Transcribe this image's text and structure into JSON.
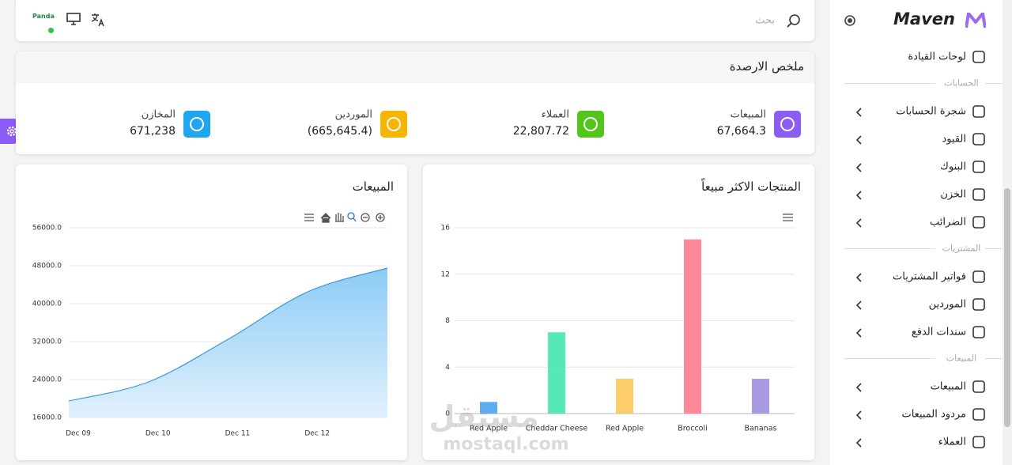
{
  "topbar": {
    "brand": "Panda",
    "search_placeholder": "بحث"
  },
  "sidebar": {
    "logo": "Maven",
    "dashboard": "لوحات القيادة",
    "sections": [
      {
        "title": "الحسابات",
        "items": [
          "شجرة الحسابات",
          "القيود",
          "البنوك",
          "الخزن",
          "الضرائب"
        ]
      },
      {
        "title": "المشتريات",
        "items": [
          "فواتير المشتريات",
          "الموردين",
          "سندات الدفع"
        ]
      },
      {
        "title": "المبيعات",
        "items": [
          "المبيعات",
          "مردود المبيعات",
          "العملاء"
        ]
      }
    ]
  },
  "summary": {
    "title": "ملخص الارصدة",
    "stats": [
      {
        "label": "المبيعات",
        "value": "67,664.3",
        "color": "#8b5cf6"
      },
      {
        "label": "العملاء",
        "value": "22,807.72",
        "color": "#52c41a"
      },
      {
        "label": "الموردين",
        "value": "(665,645.4)",
        "color": "#f7b500"
      },
      {
        "label": "المخازن",
        "value": "671,238",
        "color": "#1ea7f0"
      }
    ]
  },
  "sales_chart": {
    "type": "area",
    "title": "المبيعات",
    "categories": [
      "Dec 09",
      "Dec 10",
      "Dec 11",
      "Dec 12",
      null
    ],
    "values": [
      19500,
      23500,
      32500,
      42500,
      47500
    ],
    "color": "#3a9ad9",
    "ylim": [
      16000,
      56000
    ],
    "yticks": [
      {
        "value": 16000,
        "label": "16000.0"
      },
      {
        "value": 24000,
        "label": "24000.0"
      },
      {
        "value": 32000,
        "label": "32000.0"
      },
      {
        "value": 40000,
        "label": "40000.0"
      },
      {
        "value": 48000,
        "label": "48000.0"
      },
      {
        "value": 56000,
        "label": "56000.0"
      }
    ],
    "grid": true
  },
  "products_chart": {
    "type": "bar",
    "title": "المنتجات الاكثر مبيعاً",
    "categories": [
      "Red Apple",
      "Cheddar Cheese",
      "Red Apple",
      "Broccoli",
      "Bananas"
    ],
    "values": [
      1,
      7,
      3,
      15,
      3
    ],
    "colors": [
      "#4ea3ec",
      "#44e6ae",
      "#fdc85a",
      "#ff7b8e",
      "#a08fe0"
    ],
    "ylim": [
      0,
      16
    ],
    "yticks": [
      0,
      4,
      8,
      12,
      16
    ],
    "grid": true
  },
  "watermark": {
    "arabic": "مستقل",
    "latin": "mostaql.com"
  }
}
